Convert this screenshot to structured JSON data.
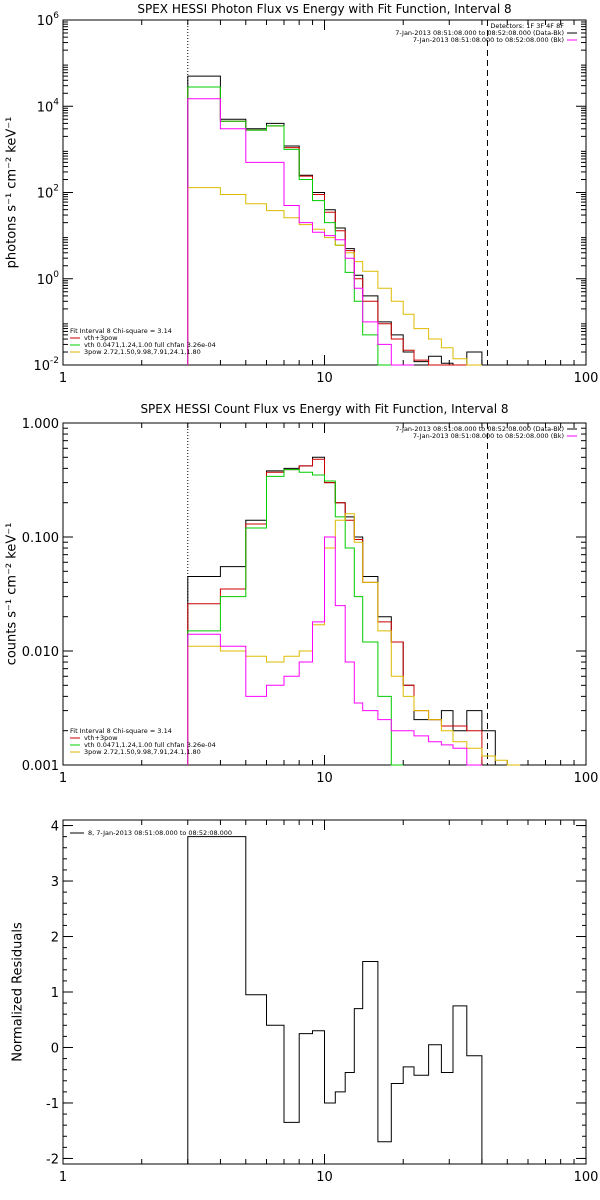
{
  "chart_data": [
    {
      "type": "line",
      "title": "SPEX HESSI Photon Flux vs Energy with Fit Function, Interval 8",
      "ylabel": "photons s⁻¹ cm⁻² keV⁻¹",
      "xscale": "log",
      "yscale": "log",
      "xlim": [
        1,
        100
      ],
      "ylim": [
        0.01,
        1000000
      ],
      "x_ticks": [
        "1",
        "10",
        "100"
      ],
      "y_ticks": [
        {
          "label": "10",
          "exp": "-2",
          "value": 0.01
        },
        {
          "label": "10",
          "exp": "0",
          "value": 1
        },
        {
          "label": "10",
          "exp": "2",
          "value": 100
        },
        {
          "label": "10",
          "exp": "4",
          "value": 10000
        },
        {
          "label": "10",
          "exp": "6",
          "value": 1000000
        }
      ],
      "vlines": [
        {
          "x": 3,
          "style": "dotted"
        },
        {
          "x": 42,
          "style": "dashed"
        }
      ],
      "legend_top_right": {
        "header": "Detectors: 1F 3F 4F 8F",
        "lines": [
          {
            "text": "7-Jan-2013 08:51:08.000 to 08:52:08.000 (Data-Bk)",
            "color": "#000000"
          },
          {
            "text": "7-Jan-2013 08:51:08.000 to 08:52:08.000 (Bk)",
            "color": "#ff00ff"
          }
        ]
      },
      "legend_bottom_left": {
        "header": "Fit Interval 8   Chi-square = 3.14",
        "lines": [
          {
            "text": "vth+3pow",
            "color": "#cc0000"
          },
          {
            "text": "vth 0.0471,1.24,1.00  full chfan 3.26e-04",
            "color": "#00cc00"
          },
          {
            "text": "3pow 2.72,1.50,9.98,7.91,24.1,1.80",
            "color": "#ddbb00"
          }
        ]
      },
      "edges": [
        3,
        4,
        5,
        6,
        7,
        8,
        9,
        10,
        11,
        12,
        13,
        14,
        16,
        18,
        20,
        22,
        25,
        28,
        31,
        35,
        40,
        45,
        50,
        56,
        63,
        71,
        80
      ],
      "series": [
        {
          "color": "#000000",
          "values": [
            50000,
            5000,
            3000,
            4000,
            1200,
            250,
            100,
            40,
            15,
            5,
            1.2,
            0.4,
            0.1,
            0.05,
            0.02,
            0.012,
            0.016,
            0.011,
            0.008,
            0.02,
            0.003,
            null,
            null,
            null,
            null,
            null
          ]
        },
        {
          "color": "#cc0000",
          "values": [
            28000,
            4500,
            2800,
            3500,
            1100,
            240,
            90,
            35,
            13,
            4.5,
            1.0,
            0.3,
            0.09,
            0.04,
            0.022,
            0.013,
            0.01,
            0.008,
            0.006,
            0.005,
            null,
            null,
            null,
            null,
            null,
            null
          ]
        },
        {
          "color": "#00cc00",
          "values": [
            28000,
            4500,
            2800,
            3500,
            1000,
            200,
            65,
            20,
            6,
            1.4,
            0.3,
            0.05,
            0.01,
            0.002,
            null,
            null,
            null,
            null,
            null,
            null,
            null,
            null,
            null,
            null,
            null,
            null
          ]
        },
        {
          "color": "#ddbb00",
          "values": [
            130,
            90,
            55,
            38,
            26,
            18,
            14,
            9,
            6,
            4,
            2.5,
            1.5,
            0.6,
            0.3,
            0.15,
            0.07,
            0.04,
            0.025,
            0.014,
            0.01,
            null,
            null,
            null,
            null,
            null,
            null
          ]
        },
        {
          "color": "#ff00ff",
          "values": [
            15000,
            3000,
            500,
            500,
            50,
            20,
            12,
            10,
            8,
            3,
            0.6,
            0.1,
            0.03,
            0.01,
            0.005,
            null,
            null,
            null,
            null,
            null,
            null,
            null,
            null,
            null,
            null,
            null
          ]
        }
      ]
    },
    {
      "type": "line",
      "title": "SPEX HESSI Count Flux vs Energy with Fit Function, Interval 8",
      "ylabel": "counts s⁻¹ cm⁻² keV⁻¹",
      "xscale": "log",
      "yscale": "log",
      "xlim": [
        1,
        100
      ],
      "ylim": [
        0.001,
        1.0
      ],
      "x_ticks": [
        "1",
        "10",
        "100"
      ],
      "y_ticks": [
        {
          "label": "0.001",
          "value": 0.001
        },
        {
          "label": "0.010",
          "value": 0.01
        },
        {
          "label": "0.100",
          "value": 0.1
        },
        {
          "label": "1.000",
          "value": 1.0
        }
      ],
      "vlines": [
        {
          "x": 3,
          "style": "dotted"
        },
        {
          "x": 42,
          "style": "dashed"
        }
      ],
      "legend_top_right": {
        "header": "",
        "lines": [
          {
            "text": "7-Jan-2013 08:51:08.000 to 08:52:08.000 (Data-Bk)",
            "color": "#000000"
          },
          {
            "text": "7-Jan-2013 08:51:08.000 to 08:52:08.000 (Bk)",
            "color": "#ff00ff"
          }
        ]
      },
      "legend_bottom_left": {
        "header": "Fit Interval 8   Chi-square = 3.14",
        "lines": [
          {
            "text": "vth+3pow",
            "color": "#cc0000"
          },
          {
            "text": "vth 0.0471,1.24,1.00  full chfan 3.26e-04",
            "color": "#00cc00"
          },
          {
            "text": "3pow 2.72,1.50,9.98,7.91,24.1,1.80",
            "color": "#ddbb00"
          }
        ]
      },
      "edges": [
        3,
        4,
        5,
        6,
        7,
        8,
        9,
        10,
        11,
        12,
        13,
        14,
        16,
        18,
        20,
        22,
        25,
        28,
        31,
        35,
        40,
        45,
        50,
        56,
        63,
        71,
        80
      ],
      "series": [
        {
          "color": "#000000",
          "values": [
            0.045,
            0.055,
            0.14,
            0.38,
            0.4,
            0.42,
            0.5,
            0.3,
            0.2,
            0.15,
            0.1,
            0.045,
            0.02,
            0.012,
            0.005,
            0.0025,
            0.0025,
            0.003,
            0.002,
            0.003,
            0.002,
            null,
            null,
            null,
            null,
            null
          ]
        },
        {
          "color": "#cc0000",
          "values": [
            0.026,
            0.035,
            0.13,
            0.37,
            0.39,
            0.42,
            0.48,
            0.3,
            0.2,
            0.14,
            0.095,
            0.04,
            0.018,
            0.012,
            0.005,
            0.003,
            0.0025,
            0.0022,
            0.0022,
            0.002,
            null,
            null,
            null,
            null,
            null,
            null
          ]
        },
        {
          "color": "#00cc00",
          "values": [
            0.015,
            0.03,
            0.12,
            0.34,
            0.39,
            0.37,
            0.35,
            0.31,
            0.15,
            0.08,
            0.03,
            0.012,
            0.004,
            0.001,
            null,
            null,
            null,
            null,
            null,
            null,
            null,
            null,
            null,
            null,
            null,
            null
          ]
        },
        {
          "color": "#ddbb00",
          "values": [
            0.011,
            0.01,
            0.009,
            0.008,
            0.009,
            0.01,
            0.017,
            0.08,
            0.14,
            0.16,
            0.09,
            0.04,
            0.015,
            0.006,
            0.004,
            0.003,
            0.0025,
            0.002,
            0.0016,
            0.0014,
            0.0012,
            0.0011,
            0.001,
            null,
            null,
            null
          ]
        },
        {
          "color": "#ff00ff",
          "values": [
            0.014,
            0.011,
            0.004,
            0.005,
            0.006,
            0.008,
            0.018,
            0.1,
            0.025,
            0.008,
            0.0035,
            0.003,
            0.0025,
            0.002,
            0.002,
            0.0018,
            0.0016,
            0.0015,
            0.0014,
            0.001,
            null,
            null,
            null,
            null,
            null,
            null
          ]
        }
      ]
    },
    {
      "type": "line",
      "title": "",
      "ylabel": "Normalized Residuals",
      "xscale": "log",
      "yscale": "linear",
      "xlim": [
        1,
        100
      ],
      "ylim": [
        -2.1,
        4.1
      ],
      "x_ticks": [
        "1",
        "10",
        "100"
      ],
      "y_ticks": [
        {
          "label": "-2",
          "value": -2
        },
        {
          "label": "-1",
          "value": -1
        },
        {
          "label": "0",
          "value": 0
        },
        {
          "label": "1",
          "value": 1
        },
        {
          "label": "2",
          "value": 2
        },
        {
          "label": "3",
          "value": 3
        },
        {
          "label": "4",
          "value": 4
        }
      ],
      "legend_text": "8,  7-Jan-2013 08:51:08.000 to 08:52:08.000",
      "edges": [
        3,
        5,
        6,
        7,
        8,
        9,
        10,
        11,
        12,
        13,
        14,
        16,
        18,
        20,
        22,
        25,
        28,
        31,
        35,
        40
      ],
      "series": [
        {
          "color": "#000000",
          "values": [
            3.8,
            0.95,
            0.4,
            -1.35,
            0.25,
            0.3,
            -1.0,
            -0.8,
            -0.45,
            0.7,
            1.55,
            -1.7,
            -0.65,
            -0.35,
            -0.5,
            0.05,
            -0.45,
            0.75,
            -0.15
          ]
        }
      ]
    }
  ]
}
